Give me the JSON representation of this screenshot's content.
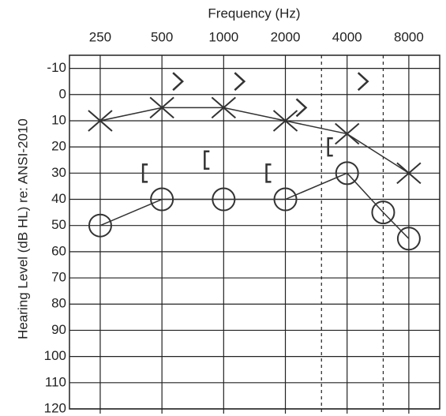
{
  "chart_data": {
    "type": "audiogram",
    "title": "Frequency (Hz)",
    "y_label": "Hearing Level (dB HL) re: ANSI-2010",
    "x_scale": "log",
    "xlim": [
      177,
      11314
    ],
    "xticks": [
      250,
      500,
      1000,
      2000,
      4000,
      8000
    ],
    "minor_xticks": [
      3000,
      6000
    ],
    "ylim": [
      -15,
      120
    ],
    "y_inverted": true,
    "yticks": [
      -10,
      0,
      10,
      20,
      30,
      40,
      50,
      60,
      70,
      80,
      90,
      100,
      110,
      120
    ],
    "grid": true,
    "series": [
      {
        "marker": "o",
        "color": "#333",
        "line": true,
        "x": [
          250,
          500,
          1000,
          2000,
          4000,
          6000,
          8000
        ],
        "values": [
          50,
          40,
          40,
          40,
          30,
          45,
          55
        ]
      },
      {
        "marker": "x",
        "color": "#333",
        "line": true,
        "x": [
          250,
          500,
          1000,
          2000,
          4000,
          8000
        ],
        "values": [
          10,
          5,
          5,
          10,
          15,
          30
        ]
      },
      {
        "marker": "[",
        "color": "#333",
        "line": false,
        "x": [
          500,
          1000,
          2000,
          4000
        ],
        "values": [
          30,
          25,
          30,
          20
        ]
      },
      {
        "marker": ">",
        "color": "#333",
        "line": false,
        "x": [
          500,
          1000,
          2000,
          4000
        ],
        "values": [
          -5,
          -5,
          5,
          -5
        ]
      }
    ]
  }
}
